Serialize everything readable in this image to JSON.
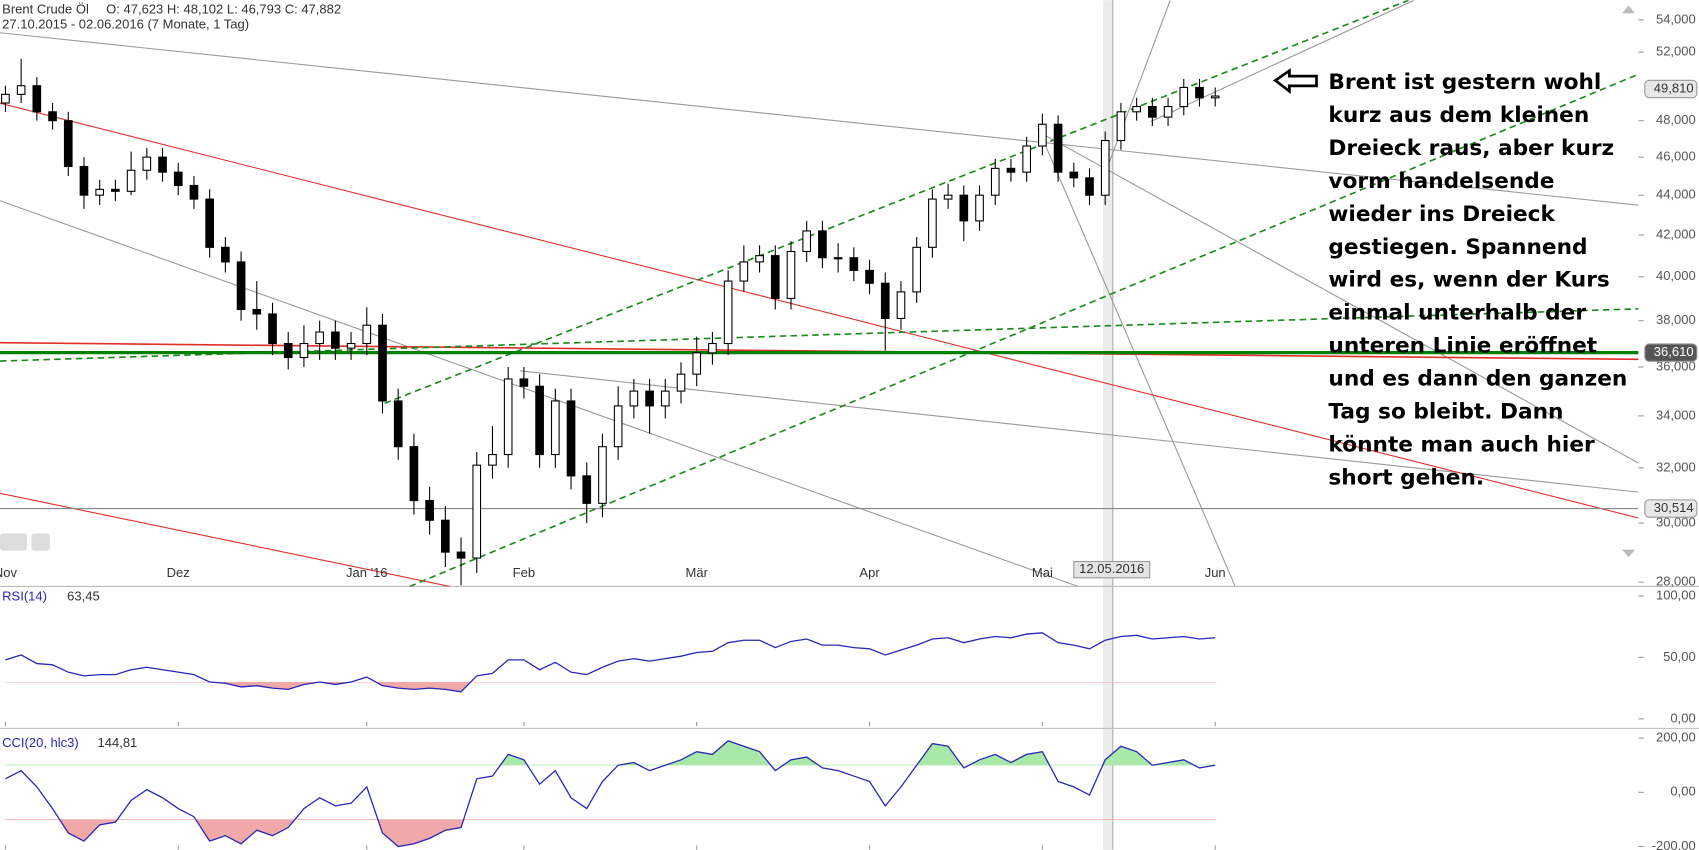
{
  "chart_data": [
    {
      "type": "candlestick",
      "title": "Brent Crude Öl",
      "ohlc_label": "O: 47,623  H: 48,102  L: 46,793  C: 47,882",
      "subtitle": "27.10.2015 - 02.06.2016 (7 Monate, 1 Tag)",
      "categories": [
        "Nov",
        null,
        null,
        null,
        null,
        null,
        null,
        null,
        null,
        null,
        null,
        "Dez",
        null,
        null,
        null,
        null,
        null,
        null,
        null,
        null,
        null,
        null,
        null,
        "Jan '16",
        null,
        null,
        null,
        null,
        null,
        null,
        null,
        null,
        null,
        "Feb",
        null,
        null,
        null,
        null,
        null,
        null,
        null,
        null,
        null,
        null,
        "Mär",
        null,
        null,
        null,
        null,
        null,
        null,
        null,
        null,
        null,
        null,
        "Apr",
        null,
        null,
        null,
        null,
        null,
        null,
        null,
        null,
        null,
        null,
        "Mai",
        null,
        null,
        null,
        null,
        null,
        null,
        null,
        null,
        null,
        null,
        "Jun"
      ],
      "open": [
        49.0,
        49.5,
        50,
        48.5,
        48,
        45.5,
        44,
        44.3,
        44.2,
        45.3,
        46,
        45.2,
        44.5,
        43.8,
        41.4,
        40.7,
        38.5,
        38.3,
        37,
        36.4,
        37,
        37.5,
        36.8,
        37,
        37.8,
        34.6,
        32.8,
        30.8,
        30.1,
        29,
        28.8,
        32.1,
        32.5,
        35.5,
        35.2,
        32.5,
        34.6,
        31.7,
        30.7,
        32.8,
        34.4,
        35,
        34.4,
        35,
        35.7,
        36.6,
        37,
        39.8,
        40.7,
        41,
        39,
        41.2,
        42.2,
        40.9,
        40.9,
        40.3,
        39.7,
        38.1,
        39.3,
        41.4,
        43.8,
        44,
        42.7,
        44,
        45.4,
        45.2,
        46.6,
        47.8,
        45.2,
        44.9,
        44,
        46.9,
        48.5,
        48.8,
        48.2,
        48.8,
        49.9,
        49.3
      ],
      "high": [
        50,
        51.6,
        50.5,
        49,
        48.5,
        46,
        44.8,
        44.8,
        46.3,
        46.5,
        46.5,
        45.7,
        45,
        44.3,
        41.9,
        41.2,
        39.8,
        38.8,
        37.5,
        37.8,
        38,
        38,
        37.5,
        38.6,
        38.3,
        35.1,
        33.3,
        31.3,
        30.6,
        29.5,
        32.6,
        33.6,
        36,
        36,
        35.7,
        35.1,
        35.1,
        32.2,
        33.3,
        35.2,
        35.5,
        35.5,
        35.5,
        36.2,
        37.3,
        37.5,
        40.3,
        41.5,
        41.5,
        41.5,
        41.7,
        42.7,
        42.7,
        41.6,
        41.4,
        40.8,
        40.2,
        39.8,
        41.9,
        44.3,
        44.6,
        44.5,
        44.5,
        45.9,
        45.9,
        47.1,
        48.4,
        48.3,
        45.7,
        45.4,
        47.4,
        49,
        49.3,
        49.3,
        49.3,
        50.4,
        50.4,
        49.9
      ],
      "low": [
        48.5,
        49,
        48,
        47.5,
        45,
        43.3,
        43.5,
        43.7,
        44,
        44.8,
        44.7,
        44,
        43.3,
        40.9,
        40.2,
        38,
        37.6,
        36.5,
        35.9,
        36,
        36.3,
        36.3,
        36.3,
        36.5,
        34.1,
        32.3,
        30.3,
        29.6,
        28.5,
        27.9,
        28.3,
        31.6,
        32,
        34.7,
        32,
        32,
        31.2,
        30,
        30.2,
        32.3,
        33.9,
        33.3,
        33.9,
        34.5,
        35.2,
        36.1,
        36.5,
        39.3,
        40.2,
        38.5,
        38.5,
        40.7,
        40.4,
        40.2,
        39.8,
        39.2,
        36.7,
        37.6,
        38.8,
        40.9,
        43.3,
        41.7,
        42.2,
        43.5,
        44.7,
        44.7,
        46.1,
        44.7,
        44.4,
        43.5,
        43.5,
        46.4,
        48,
        47.7,
        47.7,
        48.3,
        48.8,
        48.8
      ],
      "close": [
        49.5,
        50,
        48.5,
        48,
        45.5,
        44,
        44.3,
        44.2,
        45.3,
        46,
        45.2,
        44.5,
        43.8,
        41.4,
        40.7,
        38.5,
        38.3,
        37,
        36.4,
        37,
        37.5,
        36.8,
        37,
        37.8,
        34.6,
        32.8,
        30.8,
        30.1,
        29,
        28.8,
        32.1,
        32.5,
        35.5,
        35.2,
        32.5,
        34.6,
        31.7,
        30.7,
        32.8,
        34.4,
        35,
        34.4,
        35,
        35.7,
        36.6,
        37,
        39.8,
        40.7,
        41,
        39,
        41.2,
        42.2,
        40.9,
        40.9,
        40.3,
        39.7,
        38.1,
        39.3,
        41.4,
        43.8,
        44,
        42.7,
        44,
        45.4,
        45.2,
        46.6,
        47.8,
        45.2,
        44.9,
        44,
        46.9,
        48.5,
        48.8,
        48.2,
        48.8,
        49.9,
        49.3,
        49.4
      ],
      "up_color": "#ffffff",
      "down_color": "#000000",
      "ylim": [
        27.86,
        55.25
      ],
      "log_scale": true,
      "yticks": [
        {
          "value": 28,
          "label": "28,000"
        },
        {
          "value": 30,
          "label": "30,000"
        },
        {
          "value": 32,
          "label": "32,000"
        },
        {
          "value": 34,
          "label": "34,000"
        },
        {
          "value": 36,
          "label": "36,000"
        },
        {
          "value": 38,
          "label": "38,000"
        },
        {
          "value": 40,
          "label": "40,000"
        },
        {
          "value": 42,
          "label": "42,000"
        },
        {
          "value": 44,
          "label": "44,000"
        },
        {
          "value": 46,
          "label": "46,000"
        },
        {
          "value": 48,
          "label": "48,000"
        },
        {
          "value": 52,
          "label": "52,000"
        },
        {
          "value": 54,
          "label": "54,000"
        }
      ],
      "levels": [
        {
          "value": 49.81,
          "label": "49,810",
          "box_color": "#e8e8e8"
        },
        {
          "value": 36.61,
          "label": "36,610",
          "color": "#008000",
          "box_color": "#555555"
        },
        {
          "value": 30.514,
          "label": "30,514",
          "color": "#888888",
          "box_color": "#e8e8e8"
        }
      ],
      "marker_date": "12.05.2016",
      "annotation": [
        "Brent ist gestern wohl",
        "kurz aus dem kleinen",
        "Dreieck raus, aber kurz",
        "vorm handelsende",
        "wieder ins Dreieck",
        "gestiegen. Spannend",
        "wird es, wenn der Kurs",
        "einmal unterhalb der",
        "unteren Linie eröffnet",
        "und es dann den ganzen",
        "Tag so bleibt. Dann",
        "könnte man auch hier",
        "short gehen."
      ]
    },
    {
      "type": "line",
      "title": "RSI(14)",
      "value_label": "63,45",
      "color": "#2828b8",
      "values": [
        48,
        52,
        45,
        44,
        38,
        35,
        36,
        36,
        40,
        42,
        40,
        38,
        36,
        30,
        29,
        26,
        27,
        25,
        24,
        28,
        30,
        28,
        30,
        34,
        27,
        25,
        24,
        25,
        24,
        22,
        35,
        37,
        48,
        48,
        40,
        46,
        38,
        36,
        42,
        47,
        49,
        47,
        49,
        51,
        54,
        55,
        62,
        64,
        64,
        58,
        63,
        65,
        60,
        60,
        58,
        57,
        52,
        56,
        60,
        65,
        66,
        62,
        65,
        67,
        66,
        69,
        70,
        62,
        60,
        57,
        64,
        67,
        68,
        65,
        66,
        67,
        65,
        66
      ],
      "ylim": [
        -6,
        106
      ],
      "yticks": [
        {
          "value": 0,
          "label": "0,00"
        },
        {
          "value": 50,
          "label": "50,00"
        },
        {
          "value": 100,
          "label": "100,00"
        }
      ],
      "lower_band": 30,
      "lower_color": "#f0a8a8"
    },
    {
      "type": "line",
      "title": "CCI(20, hlc3)",
      "value_label": "144,81",
      "color": "#2828b8",
      "values": [
        50,
        80,
        20,
        -60,
        -150,
        -180,
        -120,
        -110,
        -30,
        10,
        -20,
        -60,
        -90,
        -180,
        -160,
        -190,
        -140,
        -160,
        -130,
        -60,
        -20,
        -50,
        -40,
        20,
        -150,
        -200,
        -190,
        -170,
        -140,
        -130,
        50,
        60,
        140,
        120,
        30,
        80,
        -20,
        -60,
        40,
        100,
        110,
        80,
        100,
        120,
        150,
        140,
        190,
        170,
        150,
        80,
        120,
        130,
        90,
        80,
        60,
        40,
        -50,
        20,
        100,
        180,
        170,
        90,
        120,
        140,
        110,
        140,
        150,
        40,
        20,
        -10,
        120,
        170,
        150,
        100,
        110,
        120,
        90,
        100
      ],
      "ylim": [
        -212,
        224
      ],
      "yticks": [
        {
          "value": -200,
          "label": "-200,00"
        },
        {
          "value": 0,
          "label": "0,00"
        },
        {
          "value": 200,
          "label": "200,00"
        }
      ],
      "upper_band": 100,
      "upper_color": "#a8e8a8",
      "lower_band": -100,
      "lower_color": "#f0a8a8"
    }
  ]
}
